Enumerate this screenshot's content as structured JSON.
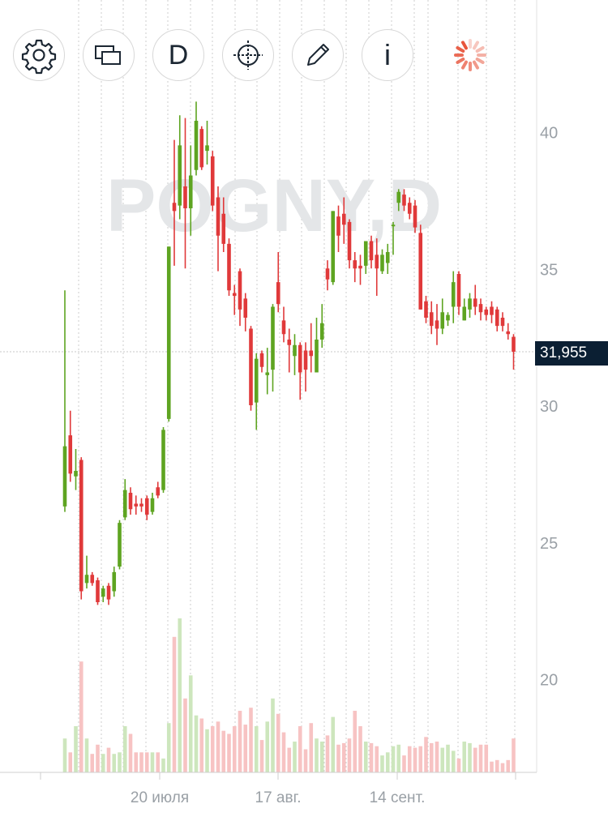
{
  "symbol_watermark": "POGNY,D",
  "toolbar": {
    "settings": "gear-icon",
    "compare": "compare-windows-icon",
    "period": "D",
    "crosshair": "crosshair-icon",
    "draw": "pencil-icon",
    "info": "i",
    "loading": "loading-spinner-icon"
  },
  "colors": {
    "up": "#5ea421",
    "down": "#e0393a",
    "up_volume": "#cde6bd",
    "down_volume": "#f7c3c3",
    "grid": "#cccccc",
    "axis_text": "#9aa0a6",
    "price_tag_bg": "#0b1f33"
  },
  "last_price": "31,955",
  "chart_data": {
    "type": "candlestick",
    "title": "",
    "y_axis": {
      "ticks": [
        "20",
        "25",
        "30",
        "35",
        "40"
      ],
      "ylim": [
        19.6,
        42.0
      ],
      "side": "right"
    },
    "x_axis": {
      "tick_labels": [
        "20 июля",
        "17 авг.",
        "14 сент."
      ]
    },
    "grid": true,
    "last_price": 31.955,
    "candles": [
      {
        "o": 26.3,
        "h": 34.2,
        "l": 26.1,
        "c": 28.5,
        "v": "up"
      },
      {
        "o": 28.9,
        "h": 29.8,
        "l": 27.2,
        "c": 27.5,
        "v": "down"
      },
      {
        "o": 27.4,
        "h": 28.4,
        "l": 26.9,
        "c": 27.6,
        "v": "down"
      },
      {
        "o": 28.0,
        "h": 28.1,
        "l": 22.9,
        "c": 23.2,
        "v": "down"
      },
      {
        "o": 23.5,
        "h": 24.5,
        "l": 23.3,
        "c": 23.8,
        "v": "up"
      },
      {
        "o": 23.8,
        "h": 23.9,
        "l": 23.4,
        "c": 23.5,
        "v": "down"
      },
      {
        "o": 23.6,
        "h": 23.7,
        "l": 22.7,
        "c": 22.8,
        "v": "down"
      },
      {
        "o": 23.0,
        "h": 23.4,
        "l": 22.8,
        "c": 23.3,
        "v": "up"
      },
      {
        "o": 23.4,
        "h": 23.5,
        "l": 22.7,
        "c": 22.9,
        "v": "down"
      },
      {
        "o": 23.2,
        "h": 24.1,
        "l": 23.0,
        "c": 23.9,
        "v": "up"
      },
      {
        "o": 24.1,
        "h": 25.8,
        "l": 24.0,
        "c": 25.7,
        "v": "up"
      },
      {
        "o": 25.9,
        "h": 27.3,
        "l": 25.8,
        "c": 26.9,
        "v": "up"
      },
      {
        "o": 26.8,
        "h": 27.0,
        "l": 26.0,
        "c": 26.2,
        "v": "down"
      },
      {
        "o": 26.4,
        "h": 26.7,
        "l": 26.0,
        "c": 26.3,
        "v": "down"
      },
      {
        "o": 26.4,
        "h": 26.6,
        "l": 26.1,
        "c": 26.3,
        "v": "down"
      },
      {
        "o": 26.6,
        "h": 26.7,
        "l": 25.8,
        "c": 26.0,
        "v": "down"
      },
      {
        "o": 26.1,
        "h": 26.8,
        "l": 26.0,
        "c": 26.6,
        "v": "up"
      },
      {
        "o": 27.0,
        "h": 27.2,
        "l": 26.6,
        "c": 26.7,
        "v": "down"
      },
      {
        "o": 26.9,
        "h": 29.2,
        "l": 26.8,
        "c": 29.1,
        "v": "up"
      },
      {
        "o": 29.5,
        "h": 35.8,
        "l": 29.4,
        "c": 35.8,
        "v": "up"
      },
      {
        "o": 37.4,
        "h": 39.7,
        "l": 35.1,
        "c": 37.1,
        "v": "up"
      },
      {
        "o": 37.3,
        "h": 40.6,
        "l": 36.8,
        "c": 39.5,
        "v": "down"
      },
      {
        "o": 38.0,
        "h": 40.5,
        "l": 35.0,
        "c": 37.2,
        "v": "up"
      },
      {
        "o": 37.2,
        "h": 39.5,
        "l": 36.2,
        "c": 38.4,
        "v": "up"
      },
      {
        "o": 38.6,
        "h": 41.1,
        "l": 38.4,
        "c": 40.4,
        "v": "down"
      },
      {
        "o": 40.1,
        "h": 40.2,
        "l": 38.6,
        "c": 38.7,
        "v": "down"
      },
      {
        "o": 39.3,
        "h": 40.4,
        "l": 38.8,
        "c": 39.5,
        "v": "down"
      },
      {
        "o": 39.1,
        "h": 39.3,
        "l": 37.1,
        "c": 37.3,
        "v": "down"
      },
      {
        "o": 37.6,
        "h": 38.0,
        "l": 34.9,
        "c": 36.2,
        "v": "down"
      },
      {
        "o": 37.0,
        "h": 37.6,
        "l": 35.6,
        "c": 35.9,
        "v": "down"
      },
      {
        "o": 35.9,
        "h": 36.1,
        "l": 34.0,
        "c": 34.2,
        "v": "down"
      },
      {
        "o": 34.1,
        "h": 34.4,
        "l": 33.3,
        "c": 34.0,
        "v": "down"
      },
      {
        "o": 34.9,
        "h": 35.0,
        "l": 32.9,
        "c": 33.5,
        "v": "down"
      },
      {
        "o": 33.9,
        "h": 34.1,
        "l": 32.7,
        "c": 33.2,
        "v": "down"
      },
      {
        "o": 32.8,
        "h": 32.9,
        "l": 29.8,
        "c": 30.0,
        "v": "down"
      },
      {
        "o": 30.1,
        "h": 31.9,
        "l": 29.1,
        "c": 31.7,
        "v": "up"
      },
      {
        "o": 31.9,
        "h": 32.0,
        "l": 31.2,
        "c": 31.4,
        "v": "down"
      },
      {
        "o": 31.1,
        "h": 32.1,
        "l": 30.4,
        "c": 31.2,
        "v": "down"
      },
      {
        "o": 31.3,
        "h": 33.7,
        "l": 30.5,
        "c": 33.6,
        "v": "up"
      },
      {
        "o": 34.5,
        "h": 35.6,
        "l": 33.4,
        "c": 33.7,
        "v": "down"
      },
      {
        "o": 33.1,
        "h": 33.6,
        "l": 32.3,
        "c": 32.6,
        "v": "down"
      },
      {
        "o": 32.4,
        "h": 32.8,
        "l": 31.2,
        "c": 32.2,
        "v": "down"
      },
      {
        "o": 31.8,
        "h": 32.6,
        "l": 31.1,
        "c": 32.2,
        "v": "up"
      },
      {
        "o": 32.2,
        "h": 32.3,
        "l": 30.2,
        "c": 31.2,
        "v": "down"
      },
      {
        "o": 32.0,
        "h": 32.3,
        "l": 30.5,
        "c": 31.3,
        "v": "down"
      },
      {
        "o": 32.0,
        "h": 33.0,
        "l": 31.2,
        "c": 31.8,
        "v": "down"
      },
      {
        "o": 31.2,
        "h": 33.2,
        "l": 31.2,
        "c": 32.4,
        "v": "up"
      },
      {
        "o": 32.4,
        "h": 33.7,
        "l": 32.1,
        "c": 33.0,
        "v": "up"
      },
      {
        "o": 35.0,
        "h": 35.3,
        "l": 34.2,
        "c": 34.6,
        "v": "down"
      },
      {
        "o": 34.5,
        "h": 37.1,
        "l": 34.4,
        "c": 37.1,
        "v": "up"
      },
      {
        "o": 36.9,
        "h": 37.3,
        "l": 35.6,
        "c": 36.2,
        "v": "down"
      },
      {
        "o": 37.0,
        "h": 37.6,
        "l": 35.9,
        "c": 36.6,
        "v": "down"
      },
      {
        "o": 36.7,
        "h": 36.8,
        "l": 35.0,
        "c": 35.3,
        "v": "down"
      },
      {
        "o": 35.3,
        "h": 35.6,
        "l": 34.5,
        "c": 35.0,
        "v": "down"
      },
      {
        "o": 35.1,
        "h": 35.5,
        "l": 34.4,
        "c": 35.0,
        "v": "down"
      },
      {
        "o": 35.1,
        "h": 36.0,
        "l": 34.8,
        "c": 36.0,
        "v": "up"
      },
      {
        "o": 36.0,
        "h": 36.2,
        "l": 35.0,
        "c": 35.3,
        "v": "down"
      },
      {
        "o": 35.5,
        "h": 36.1,
        "l": 34.0,
        "c": 35.0,
        "v": "up"
      },
      {
        "o": 34.9,
        "h": 35.7,
        "l": 34.8,
        "c": 35.5,
        "v": "up"
      },
      {
        "o": 35.2,
        "h": 35.9,
        "l": 34.8,
        "c": 35.6,
        "v": "up"
      },
      {
        "o": 36.6,
        "h": 36.7,
        "l": 35.5,
        "c": 36.6,
        "v": "up"
      },
      {
        "o": 37.4,
        "h": 37.9,
        "l": 37.1,
        "c": 37.8,
        "v": "up"
      },
      {
        "o": 37.7,
        "h": 37.9,
        "l": 37.1,
        "c": 37.3,
        "v": "down"
      },
      {
        "o": 37.4,
        "h": 37.6,
        "l": 36.8,
        "c": 37.0,
        "v": "down"
      },
      {
        "o": 37.3,
        "h": 37.5,
        "l": 36.3,
        "c": 36.5,
        "v": "down"
      },
      {
        "o": 36.3,
        "h": 36.6,
        "l": 33.5,
        "c": 33.5,
        "v": "down"
      },
      {
        "o": 33.8,
        "h": 34.0,
        "l": 33.0,
        "c": 33.2,
        "v": "down"
      },
      {
        "o": 33.4,
        "h": 33.8,
        "l": 32.6,
        "c": 32.9,
        "v": "down"
      },
      {
        "o": 33.1,
        "h": 33.7,
        "l": 32.2,
        "c": 32.8,
        "v": "down"
      },
      {
        "o": 32.8,
        "h": 33.9,
        "l": 32.6,
        "c": 33.4,
        "v": "up"
      },
      {
        "o": 33.1,
        "h": 33.4,
        "l": 32.9,
        "c": 33.3,
        "v": "up"
      },
      {
        "o": 33.6,
        "h": 34.9,
        "l": 33.0,
        "c": 34.5,
        "v": "up"
      },
      {
        "o": 34.8,
        "h": 34.9,
        "l": 33.3,
        "c": 33.6,
        "v": "down"
      },
      {
        "o": 33.1,
        "h": 33.9,
        "l": 33.1,
        "c": 33.6,
        "v": "up"
      },
      {
        "o": 33.5,
        "h": 34.1,
        "l": 33.2,
        "c": 33.9,
        "v": "up"
      },
      {
        "o": 33.9,
        "h": 34.4,
        "l": 33.3,
        "c": 33.6,
        "v": "down"
      },
      {
        "o": 33.7,
        "h": 33.9,
        "l": 33.1,
        "c": 33.4,
        "v": "down"
      },
      {
        "o": 33.5,
        "h": 33.6,
        "l": 33.1,
        "c": 33.3,
        "v": "down"
      },
      {
        "o": 33.6,
        "h": 33.8,
        "l": 33.0,
        "c": 33.3,
        "v": "up"
      },
      {
        "o": 33.5,
        "h": 33.6,
        "l": 32.7,
        "c": 32.9,
        "v": "down"
      },
      {
        "o": 33.2,
        "h": 33.4,
        "l": 32.7,
        "c": 32.9,
        "v": "down"
      },
      {
        "o": 32.7,
        "h": 33.0,
        "l": 32.4,
        "c": 32.6,
        "v": "down"
      },
      {
        "o": 32.5,
        "h": 32.6,
        "l": 31.3,
        "c": 31.955,
        "v": "down"
      }
    ],
    "volumes": [
      0.22,
      0.13,
      0.3,
      0.72,
      0.22,
      0.12,
      0.18,
      0.12,
      0.16,
      0.12,
      0.13,
      0.3,
      0.25,
      0.13,
      0.13,
      0.13,
      0.13,
      0.13,
      0.09,
      0.32,
      0.88,
      1.0,
      0.48,
      0.63,
      0.37,
      0.35,
      0.28,
      0.3,
      0.33,
      0.27,
      0.25,
      0.3,
      0.4,
      0.31,
      0.42,
      0.3,
      0.21,
      0.33,
      0.48,
      0.38,
      0.26,
      0.16,
      0.2,
      0.3,
      0.15,
      0.32,
      0.22,
      0.2,
      0.24,
      0.36,
      0.18,
      0.19,
      0.22,
      0.4,
      0.3,
      0.2,
      0.19,
      0.17,
      0.11,
      0.13,
      0.17,
      0.18,
      0.11,
      0.17,
      0.16,
      0.17,
      0.23,
      0.19,
      0.2,
      0.16,
      0.18,
      0.14,
      0.09,
      0.2,
      0.19,
      0.16,
      0.18,
      0.18,
      0.07,
      0.08,
      0.06,
      0.08,
      0.22
    ]
  }
}
